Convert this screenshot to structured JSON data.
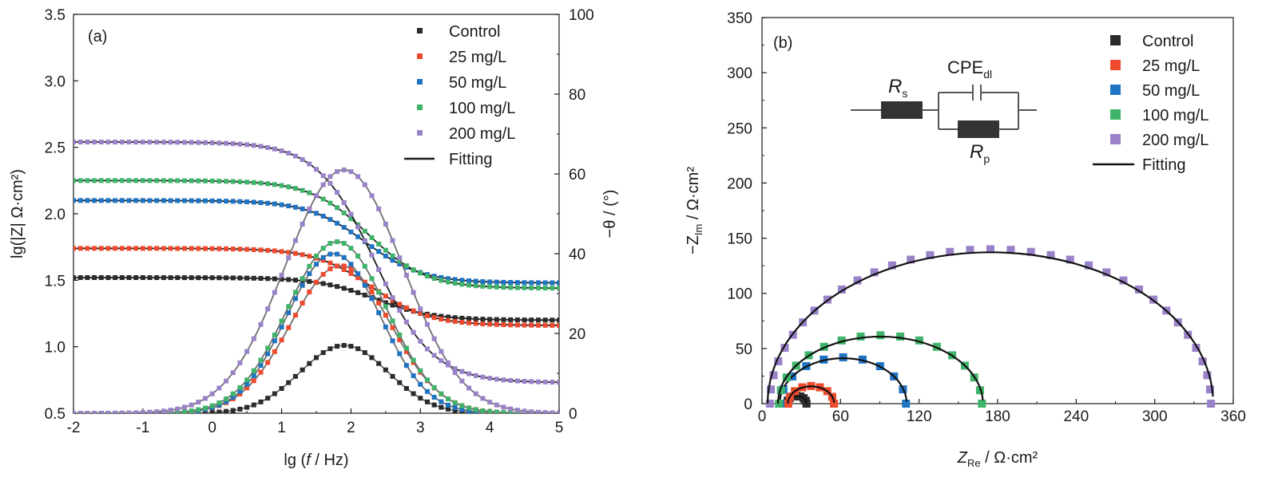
{
  "colors": {
    "control": "#2b2b2b",
    "c25": "#ee4a2e",
    "c50": "#1f73c2",
    "c100": "#3fb36a",
    "c200": "#9a82c8",
    "fit_a_mod": "#1a1a1a",
    "fit_a_phase": "#6e6e6e",
    "fit_b": "#111111"
  },
  "chart_data": [
    {
      "type": "scatter",
      "panel_label": "(a)",
      "xlabel_parts": [
        "lg (",
        "f",
        " / Hz)"
      ],
      "ylabel": "lg(|Z| Ω·cm²)",
      "y2label": "−θ / (°)",
      "xlim": [
        -2,
        5
      ],
      "ylim": [
        0.5,
        3.5
      ],
      "y2lim": [
        0,
        100
      ],
      "xticks": [
        -2,
        -1,
        0,
        1,
        2,
        3,
        4,
        5
      ],
      "yticks": [
        0.5,
        1.0,
        1.5,
        2.0,
        2.5,
        3.0,
        3.5
      ],
      "ytick_labels": [
        "0.5",
        "1.0",
        "1.5",
        "2.0",
        "2.5",
        "3.0",
        "3.5"
      ],
      "y2ticks": [
        0,
        20,
        40,
        60,
        80,
        100
      ],
      "legend_position": "top-right",
      "legend": [
        "Control",
        "25 mg/L",
        "50 mg/L",
        "100 mg/L",
        "200 mg/L",
        "Fitting"
      ],
      "series": [
        {
          "name": "Control",
          "color_key": "control",
          "Rs_log": 1.2,
          "Rp_log": 1.52,
          "phase_peak": 17,
          "phase_peak_x": 1.9,
          "phase_width": 0.75
        },
        {
          "name": "25 mg/L",
          "color_key": "c25",
          "Rs_log": 1.16,
          "Rp_log": 1.74,
          "phase_peak": 37,
          "phase_peak_x": 1.85,
          "phase_width": 0.85
        },
        {
          "name": "50 mg/L",
          "color_key": "c50",
          "Rs_log": 1.48,
          "Rp_log": 2.1,
          "phase_peak": 40,
          "phase_peak_x": 1.75,
          "phase_width": 0.8
        },
        {
          "name": "100 mg/L",
          "color_key": "c100",
          "Rs_log": 1.44,
          "Rp_log": 2.25,
          "phase_peak": 43,
          "phase_peak_x": 1.8,
          "phase_width": 0.85
        },
        {
          "name": "200 mg/L",
          "color_key": "c200",
          "Rs_log": 0.73,
          "Rp_log": 2.54,
          "phase_peak": 61,
          "phase_peak_x": 1.9,
          "phase_width": 1.0
        }
      ]
    },
    {
      "type": "scatter",
      "panel_label": "(b)",
      "xlabel_parts": [
        "Z",
        "Re",
        " / Ω·cm²"
      ],
      "ylabel_parts": [
        "−Z",
        "Im",
        " / Ω·cm²"
      ],
      "xlim": [
        0,
        360
      ],
      "ylim": [
        0,
        350
      ],
      "xticks": [
        0,
        60,
        120,
        180,
        240,
        300,
        360
      ],
      "yticks": [
        0,
        50,
        100,
        150,
        200,
        250,
        300,
        350
      ],
      "legend_position": "top-right",
      "legend": [
        "Control",
        "25 mg/L",
        "50 mg/L",
        "100 mg/L",
        "200 mg/L",
        "Fitting"
      ],
      "circuit": {
        "Rs": [
          "R",
          "s"
        ],
        "Rp": [
          "R",
          "p"
        ],
        "CPE": [
          "CPE",
          "dl"
        ]
      },
      "series": [
        {
          "name": "Control",
          "color_key": "control",
          "Rs": 19,
          "Rp": 15,
          "peak": 7
        },
        {
          "name": "25 mg/L",
          "color_key": "c25",
          "Rs": 20,
          "Rp": 35,
          "peak": 16
        },
        {
          "name": "50 mg/L",
          "color_key": "c50",
          "Rs": 14,
          "Rp": 96,
          "peak": 42
        },
        {
          "name": "100 mg/L",
          "color_key": "c100",
          "Rs": 13,
          "Rp": 155,
          "peak": 62
        },
        {
          "name": "200 mg/L",
          "color_key": "c200",
          "Rs": 6,
          "Rp": 337,
          "peak": 140
        }
      ]
    }
  ]
}
